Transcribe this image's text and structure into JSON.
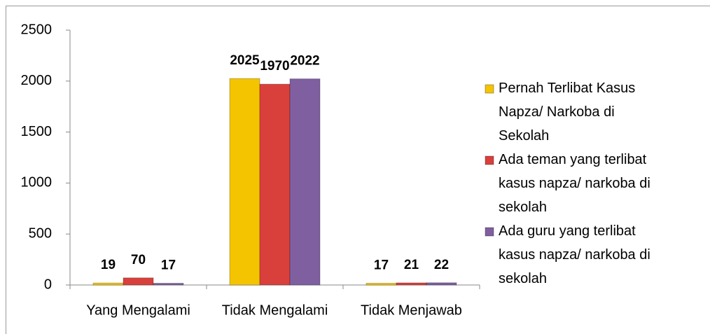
{
  "chart_data": {
    "type": "bar",
    "categories": [
      "Yang Mengalami",
      "Tidak Mengalami",
      "Tidak Menjawab"
    ],
    "series": [
      {
        "name": "Pernah Terlibat Kasus Napza/ Narkoba di Sekolah",
        "color": "#f5c400",
        "values": [
          19,
          2025,
          17
        ]
      },
      {
        "name": "Ada teman yang terlibat kasus napza/ narkoba di sekolah",
        "color": "#d9403c",
        "values": [
          70,
          1970,
          21
        ]
      },
      {
        "name": "Ada guru yang terlibat kasus napza/ narkoba di sekolah",
        "color": "#7f5fa0",
        "values": [
          17,
          2022,
          22
        ]
      }
    ],
    "ylim": [
      0,
      2500
    ],
    "yticks": [
      0,
      500,
      1000,
      1500,
      2000,
      2500
    ],
    "grid": false,
    "legend": "right"
  }
}
